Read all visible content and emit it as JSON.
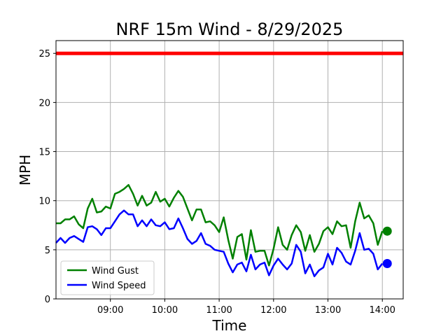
{
  "chart_data": {
    "type": "line",
    "title": "NRF 15m Wind - 8/29/2025",
    "xlabel": "Time",
    "ylabel": "MPH",
    "grid": true,
    "legend_position": "lower-left",
    "x_ticks": [
      "09:00",
      "10:00",
      "11:00",
      "12:00",
      "13:00",
      "14:00"
    ],
    "y_ticks": [
      "0",
      "5",
      "10",
      "15",
      "20",
      "25"
    ],
    "ylim": [
      0,
      26.3
    ],
    "xlim": [
      "08:00",
      "14:23"
    ],
    "threshold": {
      "value": 25,
      "color": "#ff0000"
    },
    "x": [
      "08:00",
      "08:05",
      "08:10",
      "08:15",
      "08:20",
      "08:25",
      "08:30",
      "08:35",
      "08:40",
      "08:45",
      "08:50",
      "08:55",
      "09:00",
      "09:05",
      "09:10",
      "09:15",
      "09:20",
      "09:25",
      "09:30",
      "09:35",
      "09:40",
      "09:45",
      "09:50",
      "09:55",
      "10:00",
      "10:05",
      "10:10",
      "10:15",
      "10:20",
      "10:25",
      "10:30",
      "10:35",
      "10:40",
      "10:45",
      "10:50",
      "10:55",
      "11:00",
      "11:05",
      "11:10",
      "11:15",
      "11:20",
      "11:25",
      "11:30",
      "11:35",
      "11:40",
      "11:45",
      "11:50",
      "11:55",
      "12:00",
      "12:05",
      "12:10",
      "12:15",
      "12:20",
      "12:25",
      "12:30",
      "12:35",
      "12:40",
      "12:45",
      "12:50",
      "12:55",
      "13:00",
      "13:05",
      "13:10",
      "13:15",
      "13:20",
      "13:25",
      "13:30",
      "13:35",
      "13:40",
      "13:45",
      "13:50",
      "13:55",
      "14:00"
    ],
    "series": [
      {
        "name": "Wind Gust",
        "color": "#008000",
        "values": [
          7.7,
          7.7,
          8.1,
          8.1,
          8.4,
          7.6,
          7.2,
          9.2,
          10.2,
          8.8,
          8.9,
          9.4,
          9.2,
          10.7,
          10.9,
          11.2,
          11.6,
          10.7,
          9.5,
          10.5,
          9.5,
          9.8,
          10.9,
          9.9,
          10.2,
          9.4,
          10.3,
          11.0,
          10.4,
          9.2,
          8.0,
          9.1,
          9.1,
          7.8,
          7.9,
          7.5,
          6.8,
          8.3,
          6.0,
          4.1,
          6.3,
          6.6,
          4.0,
          7.0,
          4.8,
          4.9,
          4.9,
          3.4,
          5.1,
          7.3,
          5.5,
          5.0,
          6.5,
          7.5,
          6.8,
          4.9,
          6.5,
          4.8,
          5.6,
          6.9,
          7.3,
          6.6,
          7.9,
          7.4,
          7.5,
          5.2,
          7.9,
          9.8,
          8.2,
          8.5,
          7.7,
          5.5,
          6.9
        ],
        "current": 6.9
      },
      {
        "name": "Wind Speed",
        "color": "#0000ff",
        "values": [
          5.7,
          6.2,
          5.7,
          6.2,
          6.4,
          6.1,
          5.8,
          7.3,
          7.4,
          7.1,
          6.5,
          7.2,
          7.2,
          7.9,
          8.6,
          9.0,
          8.6,
          8.6,
          7.4,
          8.0,
          7.4,
          8.1,
          7.5,
          7.4,
          7.8,
          7.1,
          7.2,
          8.2,
          7.2,
          6.1,
          5.6,
          5.9,
          6.7,
          5.6,
          5.4,
          5.0,
          4.9,
          4.8,
          3.6,
          2.7,
          3.5,
          3.7,
          2.8,
          4.5,
          3.0,
          3.5,
          3.7,
          2.4,
          3.4,
          4.1,
          3.5,
          3.0,
          3.6,
          5.5,
          4.8,
          2.6,
          3.5,
          2.3,
          2.9,
          3.2,
          4.6,
          3.5,
          5.2,
          4.7,
          3.8,
          3.5,
          4.9,
          6.7,
          5.0,
          5.1,
          4.6,
          3.0,
          3.6
        ],
        "current": 3.6
      }
    ]
  }
}
